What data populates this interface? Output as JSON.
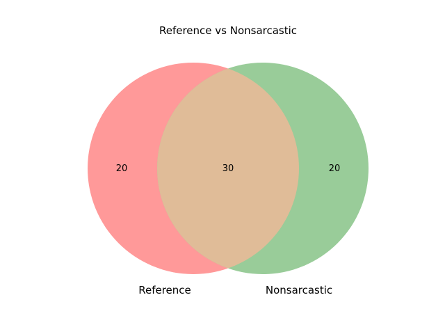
{
  "title": "Reference vs Nonsarcastic",
  "sets": [
    {
      "name": "Reference",
      "only_count": "20",
      "color": "#ff9999"
    },
    {
      "name": "Nonsarcastic",
      "only_count": "20",
      "color": "#99cc99"
    }
  ],
  "intersection": {
    "count": "30",
    "color": "#e0bc98"
  }
}
